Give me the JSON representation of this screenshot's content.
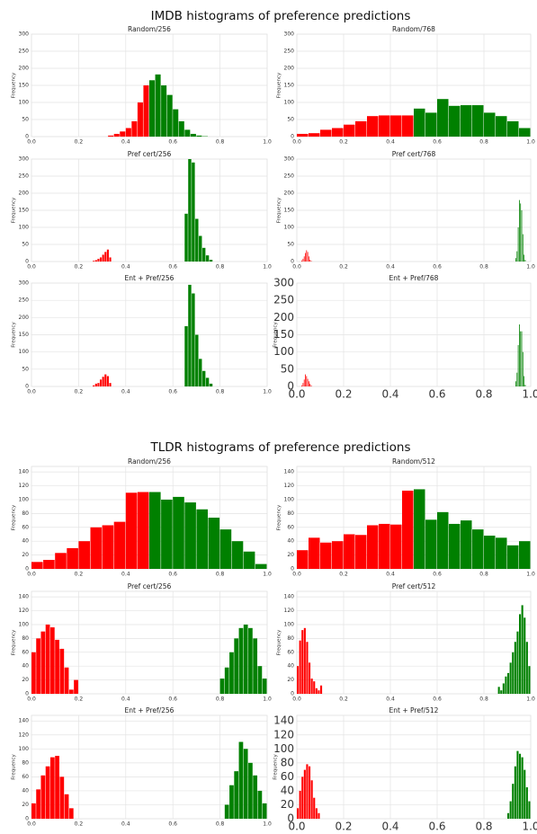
{
  "sections": [
    {
      "title": "IMDB histograms of preference predictions"
    },
    {
      "title": "TLDR histograms of preference predictions"
    }
  ],
  "chart_data": [
    {
      "type": "histogram",
      "title": "Random/256",
      "ylabel": "Frequency",
      "xlim": [
        0,
        1
      ],
      "ylim": [
        0,
        300
      ],
      "grid": true,
      "xticks": [
        {
          "value": 0,
          "label": "0.0"
        },
        0.2,
        0.4,
        0.6,
        0.8,
        {
          "value": 1,
          "label": "1.0"
        }
      ],
      "yticks": [
        0,
        50,
        100,
        150,
        200,
        250,
        300
      ],
      "series": [
        {
          "color": "#ff0000",
          "bins": [
            0.325,
            0.35,
            0.375,
            0.4,
            0.425,
            0.45,
            0.475,
            0.5
          ],
          "counts": [
            3,
            8,
            15,
            25,
            45,
            100,
            150
          ]
        },
        {
          "color": "#008000",
          "bins": [
            0.5,
            0.525,
            0.55,
            0.575,
            0.6,
            0.625,
            0.65,
            0.675,
            0.7,
            0.725,
            0.75
          ],
          "counts": [
            165,
            182,
            150,
            122,
            80,
            45,
            20,
            8,
            3,
            1
          ]
        }
      ]
    },
    {
      "type": "histogram",
      "title": "Random/768",
      "ylabel": "Frequency",
      "xlim": [
        0,
        1
      ],
      "ylim": [
        0,
        300
      ],
      "grid": true,
      "xticks": [
        {
          "value": 0,
          "label": "0.0"
        },
        0.2,
        0.4,
        0.6,
        0.8,
        {
          "value": 1,
          "label": "1.0"
        }
      ],
      "yticks": [
        0,
        50,
        100,
        150,
        200,
        250,
        300
      ],
      "series": [
        {
          "color": "#ff0000",
          "bins": [
            0,
            0.05,
            0.1,
            0.15,
            0.2,
            0.25,
            0.3,
            0.35,
            0.4,
            0.45,
            0.5
          ],
          "counts": [
            8,
            10,
            20,
            25,
            35,
            45,
            60,
            62,
            62,
            62
          ]
        },
        {
          "color": "#008000",
          "bins": [
            0.5,
            0.55,
            0.6,
            0.65,
            0.7,
            0.75,
            0.8,
            0.85,
            0.9,
            0.95,
            1
          ],
          "counts": [
            82,
            70,
            110,
            90,
            92,
            92,
            70,
            60,
            45,
            25
          ]
        }
      ]
    },
    {
      "type": "histogram",
      "title": "Pref cert/256",
      "ylabel": "Frequency",
      "xlim": [
        0,
        1
      ],
      "ylim": [
        0,
        300
      ],
      "grid": true,
      "xticks": [
        {
          "value": 0,
          "label": "0.0"
        },
        0.2,
        0.4,
        0.6,
        0.8,
        {
          "value": 1,
          "label": "1.0"
        }
      ],
      "yticks": [
        0,
        50,
        100,
        150,
        200,
        250,
        300
      ],
      "series": [
        {
          "color": "#ff0000",
          "bins": [
            0.26,
            0.27,
            0.28,
            0.29,
            0.3,
            0.31,
            0.32,
            0.33,
            0.34
          ],
          "counts": [
            2,
            4,
            8,
            12,
            20,
            28,
            35,
            12
          ]
        },
        {
          "color": "#008000",
          "bins": [
            0.65,
            0.665,
            0.68,
            0.695,
            0.71,
            0.725,
            0.74,
            0.755,
            0.77
          ],
          "counts": [
            140,
            300,
            290,
            125,
            75,
            40,
            18,
            5
          ]
        }
      ]
    },
    {
      "type": "histogram",
      "title": "Pref cert/768",
      "ylabel": "Frequency",
      "xlim": [
        0,
        1
      ],
      "ylim": [
        0,
        300
      ],
      "grid": true,
      "xticks": [
        {
          "value": 0,
          "label": "0.0"
        },
        0.2,
        0.4,
        0.6,
        0.8,
        {
          "value": 1,
          "label": "1.0"
        }
      ],
      "yticks": [
        0,
        50,
        100,
        150,
        200,
        250,
        300
      ],
      "series": [
        {
          "color": "#ff0000",
          "bins": [
            0.02,
            0.025,
            0.03,
            0.035,
            0.04,
            0.045,
            0.05,
            0.055,
            0.06,
            0.065
          ],
          "counts": [
            3,
            8,
            15,
            25,
            33,
            28,
            15,
            5,
            2
          ]
        },
        {
          "color": "#008000",
          "bins": [
            0.935,
            0.94,
            0.945,
            0.95,
            0.955,
            0.96,
            0.965,
            0.97,
            0.975,
            0.98
          ],
          "counts": [
            10,
            30,
            100,
            180,
            170,
            150,
            80,
            20,
            5
          ]
        }
      ]
    },
    {
      "type": "histogram",
      "title": "Ent + Pref/256",
      "ylabel": "Frequency",
      "xlim": [
        0,
        1
      ],
      "ylim": [
        0,
        300
      ],
      "grid": true,
      "xticks": [
        {
          "value": 0,
          "label": "0.0"
        },
        0.2,
        0.4,
        0.6,
        0.8,
        {
          "value": 1,
          "label": "1.0"
        }
      ],
      "yticks": [
        0,
        50,
        100,
        150,
        200,
        250,
        300
      ],
      "series": [
        {
          "color": "#ff0000",
          "bins": [
            0.26,
            0.27,
            0.28,
            0.29,
            0.3,
            0.31,
            0.32,
            0.33,
            0.34
          ],
          "counts": [
            3,
            8,
            10,
            20,
            28,
            35,
            30,
            10
          ]
        },
        {
          "color": "#008000",
          "bins": [
            0.65,
            0.665,
            0.68,
            0.695,
            0.71,
            0.725,
            0.74,
            0.755,
            0.77
          ],
          "counts": [
            175,
            295,
            270,
            150,
            80,
            45,
            25,
            8
          ]
        }
      ]
    },
    {
      "type": "histogram",
      "title": "Ent + Pref/768",
      "ylabel": "Frequency",
      "xlim": [
        0,
        1
      ],
      "ylim": [
        0,
        300
      ],
      "grid": true,
      "xticks": [
        {
          "value": 0,
          "label": "0.0"
        },
        0.2,
        0.4,
        0.6,
        0.8,
        {
          "value": 1,
          "label": "1.0"
        }
      ],
      "yticks": [
        0,
        50,
        100,
        150,
        200,
        250,
        300
      ],
      "series": [
        {
          "color": "#ff0000",
          "bins": [
            0.02,
            0.025,
            0.03,
            0.035,
            0.04,
            0.045,
            0.05,
            0.055,
            0.06,
            0.065
          ],
          "counts": [
            3,
            10,
            20,
            35,
            30,
            22,
            15,
            8,
            3
          ]
        },
        {
          "color": "#008000",
          "bins": [
            0.935,
            0.94,
            0.945,
            0.95,
            0.955,
            0.96,
            0.965,
            0.97,
            0.975,
            0.98
          ],
          "counts": [
            15,
            40,
            120,
            180,
            160,
            160,
            100,
            30,
            5
          ]
        }
      ]
    },
    {
      "type": "histogram",
      "title": "Random/256",
      "ylabel": "Frequency",
      "xlim": [
        0,
        1
      ],
      "ylim": [
        0,
        148
      ],
      "grid": true,
      "xticks": [
        {
          "value": 0,
          "label": "0.0"
        },
        0.2,
        0.4,
        0.6,
        0.8,
        {
          "value": 1,
          "label": "1.0"
        }
      ],
      "yticks": [
        0,
        20,
        40,
        60,
        80,
        100,
        120,
        140
      ],
      "series": [
        {
          "color": "#ff0000",
          "bins": [
            0,
            0.05,
            0.1,
            0.15,
            0.2,
            0.25,
            0.3,
            0.35,
            0.4,
            0.45,
            0.5
          ],
          "counts": [
            10,
            13,
            23,
            30,
            40,
            60,
            63,
            68,
            110,
            111
          ]
        },
        {
          "color": "#008000",
          "bins": [
            0.5,
            0.55,
            0.6,
            0.65,
            0.7,
            0.75,
            0.8,
            0.85,
            0.9,
            0.95,
            1
          ],
          "counts": [
            111,
            100,
            104,
            96,
            86,
            74,
            57,
            40,
            25,
            7
          ]
        }
      ]
    },
    {
      "type": "histogram",
      "title": "Random/512",
      "ylabel": "Frequency",
      "xlim": [
        0,
        1
      ],
      "ylim": [
        0,
        148
      ],
      "grid": true,
      "xticks": [
        {
          "value": 0,
          "label": "0.0"
        },
        0.2,
        0.4,
        0.6,
        0.8,
        {
          "value": 1,
          "label": "1.0"
        }
      ],
      "yticks": [
        0,
        20,
        40,
        60,
        80,
        100,
        120,
        140
      ],
      "series": [
        {
          "color": "#ff0000",
          "bins": [
            0,
            0.05,
            0.1,
            0.15,
            0.2,
            0.25,
            0.3,
            0.35,
            0.4,
            0.45,
            0.5
          ],
          "counts": [
            27,
            45,
            38,
            40,
            50,
            49,
            63,
            65,
            64,
            113
          ]
        },
        {
          "color": "#008000",
          "bins": [
            0.5,
            0.55,
            0.6,
            0.65,
            0.7,
            0.75,
            0.8,
            0.85,
            0.9,
            0.95,
            1
          ],
          "counts": [
            115,
            71,
            82,
            65,
            70,
            57,
            48,
            45,
            34,
            40
          ]
        }
      ]
    },
    {
      "type": "histogram",
      "title": "Pref cert/256",
      "ylabel": "Frequency",
      "xlim": [
        0,
        1
      ],
      "ylim": [
        0,
        148
      ],
      "grid": true,
      "xticks": [
        {
          "value": 0,
          "label": "0.0"
        },
        0.2,
        0.4,
        0.6,
        0.8,
        {
          "value": 1,
          "label": "1.0"
        }
      ],
      "yticks": [
        0,
        20,
        40,
        60,
        80,
        100,
        120,
        140
      ],
      "series": [
        {
          "color": "#ff0000",
          "bins": [
            0,
            0.02,
            0.04,
            0.06,
            0.08,
            0.1,
            0.12,
            0.14,
            0.16,
            0.18,
            0.2
          ],
          "counts": [
            60,
            80,
            90,
            100,
            96,
            78,
            65,
            38,
            6,
            20
          ]
        },
        {
          "color": "#008000",
          "bins": [
            0.8,
            0.82,
            0.84,
            0.86,
            0.88,
            0.9,
            0.92,
            0.94,
            0.96,
            0.98,
            1
          ],
          "counts": [
            22,
            38,
            60,
            80,
            95,
            100,
            95,
            80,
            40,
            22
          ]
        }
      ]
    },
    {
      "type": "histogram",
      "title": "Pref cert/512",
      "ylabel": "Frequency",
      "xlim": [
        0,
        1
      ],
      "ylim": [
        0,
        148
      ],
      "grid": true,
      "xticks": [
        {
          "value": 0,
          "label": "0.0"
        },
        0.2,
        0.4,
        0.6,
        0.8,
        {
          "value": 1,
          "label": "1.0"
        }
      ],
      "yticks": [
        0,
        20,
        40,
        60,
        80,
        100,
        120,
        140
      ],
      "series": [
        {
          "color": "#ff0000",
          "bins": [
            0,
            0.01,
            0.02,
            0.03,
            0.04,
            0.05,
            0.06,
            0.07,
            0.08,
            0.09,
            0.1,
            0.11
          ],
          "counts": [
            40,
            77,
            92,
            95,
            75,
            45,
            22,
            18,
            8,
            5,
            12
          ]
        },
        {
          "color": "#008000",
          "bins": [
            0.86,
            0.87,
            0.88,
            0.89,
            0.9,
            0.91,
            0.92,
            0.93,
            0.94,
            0.95,
            0.96,
            0.97,
            0.98,
            0.99,
            1
          ],
          "counts": [
            10,
            5,
            15,
            25,
            30,
            45,
            60,
            75,
            90,
            115,
            128,
            110,
            75,
            40
          ]
        }
      ]
    },
    {
      "type": "histogram",
      "title": "Ent + Pref/256",
      "ylabel": "Frequency",
      "xlim": [
        0,
        1
      ],
      "ylim": [
        0,
        148
      ],
      "grid": true,
      "xticks": [
        {
          "value": 0,
          "label": "0.0"
        },
        0.2,
        0.4,
        0.6,
        0.8,
        {
          "value": 1,
          "label": "1.0"
        }
      ],
      "yticks": [
        0,
        20,
        40,
        60,
        80,
        100,
        120,
        140
      ],
      "series": [
        {
          "color": "#ff0000",
          "bins": [
            0,
            0.02,
            0.04,
            0.06,
            0.08,
            0.1,
            0.12,
            0.14,
            0.16,
            0.18
          ],
          "counts": [
            22,
            42,
            62,
            75,
            88,
            90,
            60,
            35,
            15
          ]
        },
        {
          "color": "#008000",
          "bins": [
            0.82,
            0.84,
            0.86,
            0.88,
            0.9,
            0.92,
            0.94,
            0.96,
            0.98,
            1
          ],
          "counts": [
            20,
            48,
            68,
            110,
            100,
            80,
            62,
            40,
            22
          ]
        }
      ]
    },
    {
      "type": "histogram",
      "title": "Ent + Pref/512",
      "ylabel": "Frequency",
      "xlim": [
        0,
        1
      ],
      "ylim": [
        0,
        148
      ],
      "grid": true,
      "xticks": [
        {
          "value": 0,
          "label": "0.0"
        },
        0.2,
        0.4,
        0.6,
        0.8,
        {
          "value": 1,
          "label": "1.0"
        }
      ],
      "yticks": [
        0,
        20,
        40,
        60,
        80,
        100,
        120,
        140
      ],
      "series": [
        {
          "color": "#ff0000",
          "bins": [
            0,
            0.01,
            0.02,
            0.03,
            0.04,
            0.05,
            0.06,
            0.07,
            0.08,
            0.09,
            0.1
          ],
          "counts": [
            15,
            40,
            60,
            70,
            78,
            75,
            55,
            30,
            15,
            8
          ]
        },
        {
          "color": "#008000",
          "bins": [
            0.9,
            0.91,
            0.92,
            0.93,
            0.94,
            0.95,
            0.96,
            0.97,
            0.98,
            0.99,
            1
          ],
          "counts": [
            8,
            25,
            50,
            75,
            97,
            93,
            88,
            70,
            45,
            25
          ]
        }
      ]
    }
  ]
}
